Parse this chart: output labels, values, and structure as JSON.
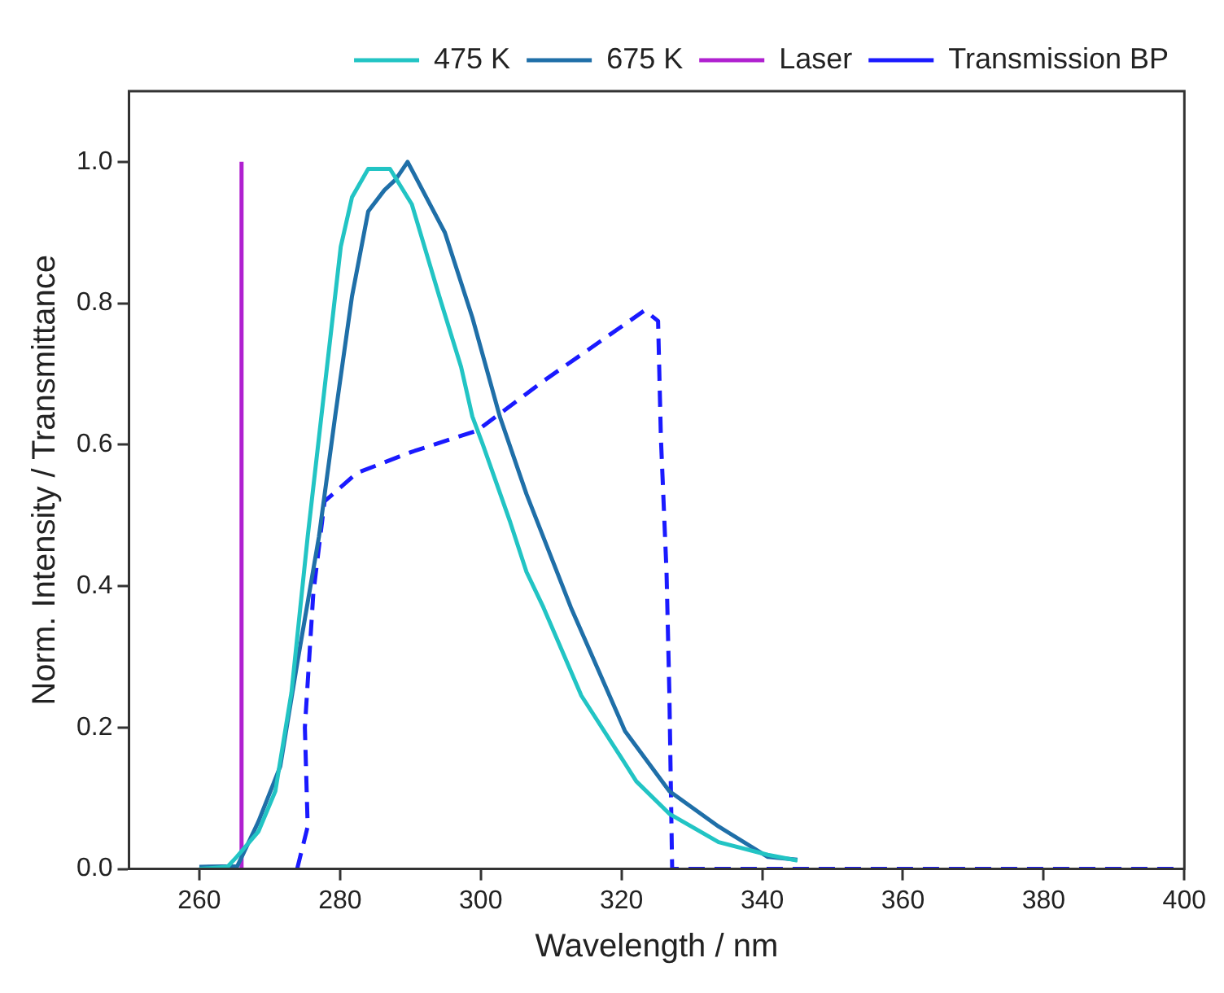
{
  "chart_data": {
    "type": "line",
    "xlabel": "Wavelength / nm",
    "ylabel": "Norm. Intensity / Transmittance",
    "xlim": [
      250,
      400
    ],
    "xticks": [
      260,
      280,
      300,
      320,
      340,
      360,
      380,
      400
    ],
    "ylim": [
      0,
      1.1
    ],
    "yticks": [
      {
        "value": 0,
        "label": "0.0"
      },
      {
        "value": 0.2,
        "label": "0.2"
      },
      {
        "value": 0.4,
        "label": "0.4"
      },
      {
        "value": 0.6,
        "label": "0.6"
      },
      {
        "value": 0.8,
        "label": "0.8"
      },
      {
        "value": 1,
        "label": "1.0"
      }
    ],
    "grid": false,
    "legend": "top right",
    "marker": "none",
    "series": [
      {
        "name": "475 K",
        "color": "#22c4c4",
        "line_style": "solid",
        "x": [
          260,
          264,
          265.3,
          268.4,
          270.8,
          273.1,
          275.4,
          277.8,
          280.1,
          281.7,
          284,
          287.1,
          290.2,
          294.1,
          297.2,
          298.8,
          300.3,
          304.2,
          306.5,
          308.9,
          314.3,
          319.8,
          322.1,
          326.8,
          333.8,
          340.8,
          345
        ],
        "values": [
          0,
          0.003,
          0.017,
          0.053,
          0.11,
          0.25,
          0.47,
          0.68,
          0.88,
          0.95,
          0.99,
          0.99,
          0.94,
          0.81,
          0.71,
          0.64,
          0.6,
          0.49,
          0.42,
          0.37,
          0.245,
          0.16,
          0.124,
          0.078,
          0.038,
          0.02,
          0.012
        ]
      },
      {
        "name": "675 K",
        "color": "#1f6fa8",
        "line_style": "solid",
        "x": [
          260,
          265.4,
          268.4,
          271.5,
          273.9,
          277,
          279.3,
          281.7,
          284,
          286.3,
          287.9,
          289.6,
          294.9,
          298.8,
          302.7,
          306.5,
          312.8,
          320.5,
          326.8,
          333.8,
          340.8,
          345
        ],
        "values": [
          0.003,
          0.004,
          0.067,
          0.145,
          0.29,
          0.47,
          0.64,
          0.81,
          0.93,
          0.96,
          0.975,
          1,
          0.9,
          0.78,
          0.64,
          0.53,
          0.37,
          0.195,
          0.11,
          0.06,
          0.017,
          0.013
        ]
      },
      {
        "name": "Laser",
        "color": "#b020d0",
        "line_style": "solid",
        "x": [
          266,
          266
        ],
        "values": [
          0,
          1
        ]
      },
      {
        "name": "Transmission BP",
        "color": "#1a1aff",
        "line_style": "dashed",
        "x": [
          273.9,
          275.4,
          275,
          276.2,
          277.8,
          282.4,
          290.2,
          299.5,
          308.9,
          323.3,
          325.2,
          325.6,
          326.4,
          326.8,
          327.2,
          330,
          400
        ],
        "values": [
          0,
          0.06,
          0.2,
          0.39,
          0.52,
          0.56,
          0.59,
          0.62,
          0.69,
          0.79,
          0.775,
          0.61,
          0.42,
          0.25,
          0,
          0,
          0
        ]
      }
    ]
  }
}
